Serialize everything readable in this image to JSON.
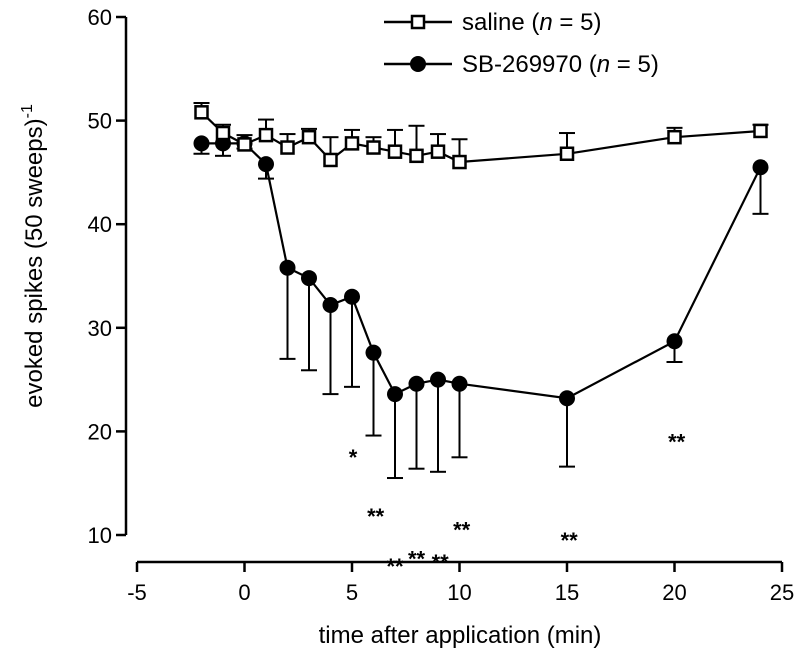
{
  "chart_data": {
    "type": "line",
    "xlabel": "time after application (min)",
    "ylabel": {
      "main": "evoked spikes (50 sweeps)",
      "superscript": "-1"
    },
    "xlim": [
      -5,
      25
    ],
    "ylim": [
      10,
      60
    ],
    "x_ticks": [
      -5,
      0,
      5,
      10,
      15,
      20,
      25
    ],
    "y_ticks": [
      10,
      20,
      30,
      40,
      50,
      60
    ],
    "grid": false,
    "legend_position": "top-right",
    "series": [
      {
        "name": "saline",
        "n_text": "n",
        "n_value": " = 5)",
        "marker": "open-square",
        "color": "#000000",
        "points": [
          {
            "x": -2,
            "y": 50.8,
            "err": 0.9
          },
          {
            "x": -1,
            "y": 48.8,
            "err": 0.8
          },
          {
            "x": 0,
            "y": 47.7,
            "err": 0.9
          },
          {
            "x": 1,
            "y": 48.6,
            "err": 1.5
          },
          {
            "x": 2,
            "y": 47.4,
            "err": 1.3
          },
          {
            "x": 3,
            "y": 48.4,
            "err": 0.8
          },
          {
            "x": 4,
            "y": 46.2,
            "err": 2.2
          },
          {
            "x": 5,
            "y": 47.8,
            "err": 1.3
          },
          {
            "x": 6,
            "y": 47.4,
            "err": 1.0
          },
          {
            "x": 7,
            "y": 47.0,
            "err": 2.1
          },
          {
            "x": 8,
            "y": 46.6,
            "err": 2.9
          },
          {
            "x": 9,
            "y": 47.0,
            "err": 1.7
          },
          {
            "x": 10,
            "y": 46.0,
            "err": 2.2
          },
          {
            "x": 15,
            "y": 46.8,
            "err": 2.0
          },
          {
            "x": 20,
            "y": 48.4,
            "err": 0.9
          },
          {
            "x": 24,
            "y": 49.0,
            "err": 0.6
          }
        ]
      },
      {
        "name": "SB-269970",
        "n_text": "n",
        "n_value": " = 5)",
        "marker": "filled-circle",
        "color": "#000000",
        "points": [
          {
            "x": -2,
            "y": 47.8,
            "err": 1.0
          },
          {
            "x": -1,
            "y": 47.8,
            "err": 1.2
          },
          {
            "x": 0,
            "y": 47.8,
            "err": 0.5
          },
          {
            "x": 1,
            "y": 45.8,
            "err": 1.4
          },
          {
            "x": 2,
            "y": 35.8,
            "err": 8.8
          },
          {
            "x": 3,
            "y": 34.8,
            "err": 8.9
          },
          {
            "x": 4,
            "y": 32.2,
            "err": 8.6
          },
          {
            "x": 5,
            "y": 33.0,
            "err": 8.7
          },
          {
            "x": 6,
            "y": 27.6,
            "err": 8.0
          },
          {
            "x": 7,
            "y": 23.6,
            "err": 8.1
          },
          {
            "x": 8,
            "y": 24.6,
            "err": 8.2
          },
          {
            "x": 9,
            "y": 25.0,
            "err": 8.9
          },
          {
            "x": 10,
            "y": 24.6,
            "err": 7.1
          },
          {
            "x": 15,
            "y": 23.2,
            "err": 6.6
          },
          {
            "x": 20,
            "y": 28.7,
            "err": 2.0
          },
          {
            "x": 24,
            "y": 45.5,
            "err": 4.5
          }
        ]
      }
    ],
    "significance": [
      {
        "label": "*",
        "x": 5.05,
        "y": 17.9
      },
      {
        "label": "**",
        "x": 6.1,
        "y": 12.2
      },
      {
        "label": "**",
        "x": 7.0,
        "y": 7.4
      },
      {
        "label": "**",
        "x": 8.0,
        "y": 8.1
      },
      {
        "label": "**",
        "x": 9.1,
        "y": 7.8
      },
      {
        "label": "**",
        "x": 10.1,
        "y": 10.9
      },
      {
        "label": "**",
        "x": 15.1,
        "y": 9.9
      },
      {
        "label": "**",
        "x": 20.1,
        "y": 19.4
      }
    ]
  }
}
